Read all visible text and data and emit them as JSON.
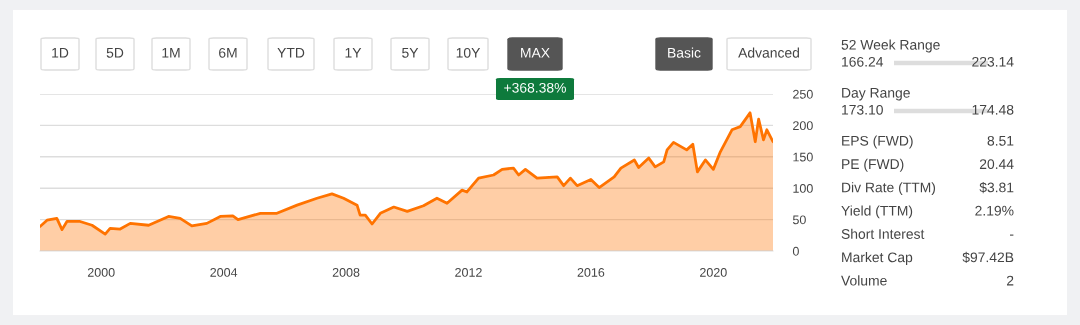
{
  "chart_data": [
    {
      "type": "area",
      "x": [
        1998.0,
        1998.23,
        1998.55,
        1998.72,
        1998.88,
        1999.31,
        1999.7,
        2000.13,
        2000.29,
        2000.62,
        2000.95,
        2001.55,
        2002.2,
        2002.58,
        2002.96,
        2003.45,
        2003.89,
        2004.3,
        2004.47,
        2005.2,
        2005.74,
        2006.4,
        2007.05,
        2007.54,
        2007.92,
        2008.36,
        2008.46,
        2008.63,
        2008.85,
        2009.12,
        2009.56,
        2010.0,
        2010.53,
        2010.97,
        2011.3,
        2011.79,
        2011.95,
        2012.33,
        2012.82,
        2013.1,
        2013.47,
        2013.64,
        2013.86,
        2014.24,
        2014.9,
        2015.11,
        2015.33,
        2015.55,
        2016.0,
        2016.27,
        2016.76,
        2016.98,
        2017.42,
        2017.56,
        2017.89,
        2018.1,
        2018.38,
        2018.49,
        2018.7,
        2019.13,
        2019.33,
        2019.48,
        2019.74,
        2020.0,
        2020.23,
        2020.61,
        2020.88,
        2021.2,
        2021.37,
        2021.48,
        2021.64,
        2021.75,
        2021.95
      ],
      "series": [
        {
          "color": "#ff7300",
          "values": [
            39,
            49,
            52,
            34,
            47,
            47,
            41,
            27,
            36,
            35,
            44,
            41,
            55,
            52,
            40,
            44,
            55,
            56,
            50,
            60,
            60,
            73,
            84,
            91,
            84,
            73,
            57,
            57,
            43,
            60,
            70,
            63,
            72,
            84,
            76,
            97,
            94,
            116,
            121,
            130,
            132,
            121,
            130,
            116,
            118,
            104,
            116,
            104,
            114,
            101,
            118,
            132,
            145,
            133,
            148,
            134,
            142,
            161,
            173,
            161,
            170,
            126,
            145,
            130,
            158,
            193,
            198,
            220,
            174,
            210,
            177,
            193,
            174
          ]
        }
      ],
      "xlim": [
        1998.0,
        2021.95
      ],
      "xticks": [
        2000,
        2004,
        2008,
        2012,
        2016,
        2020
      ],
      "ylim": [
        0,
        250
      ],
      "yticks": [
        0,
        50,
        100,
        150,
        200,
        250
      ],
      "grid": "y",
      "legend": false,
      "annotations": [
        "1D",
        "5D",
        "1M",
        "6M",
        "YTD",
        "1Y",
        "5Y",
        "10Y",
        "MAX",
        "Basic",
        "Advanced",
        "+368.38%"
      ]
    },
    {
      "type": "other",
      "annotations": [
        "52 Week Range",
        "166.24",
        "223.14",
        "Day Range",
        "173.10",
        "174.48",
        "EPS (FWD)",
        "8.51",
        "PE (FWD)",
        "20.44",
        "Div Rate (TTM)",
        "$3.81",
        "Yield (TTM)",
        "2.19%",
        "Short Interest",
        "-",
        "Market Cap",
        "$97.42B",
        "Volume",
        "2"
      ]
    }
  ]
}
